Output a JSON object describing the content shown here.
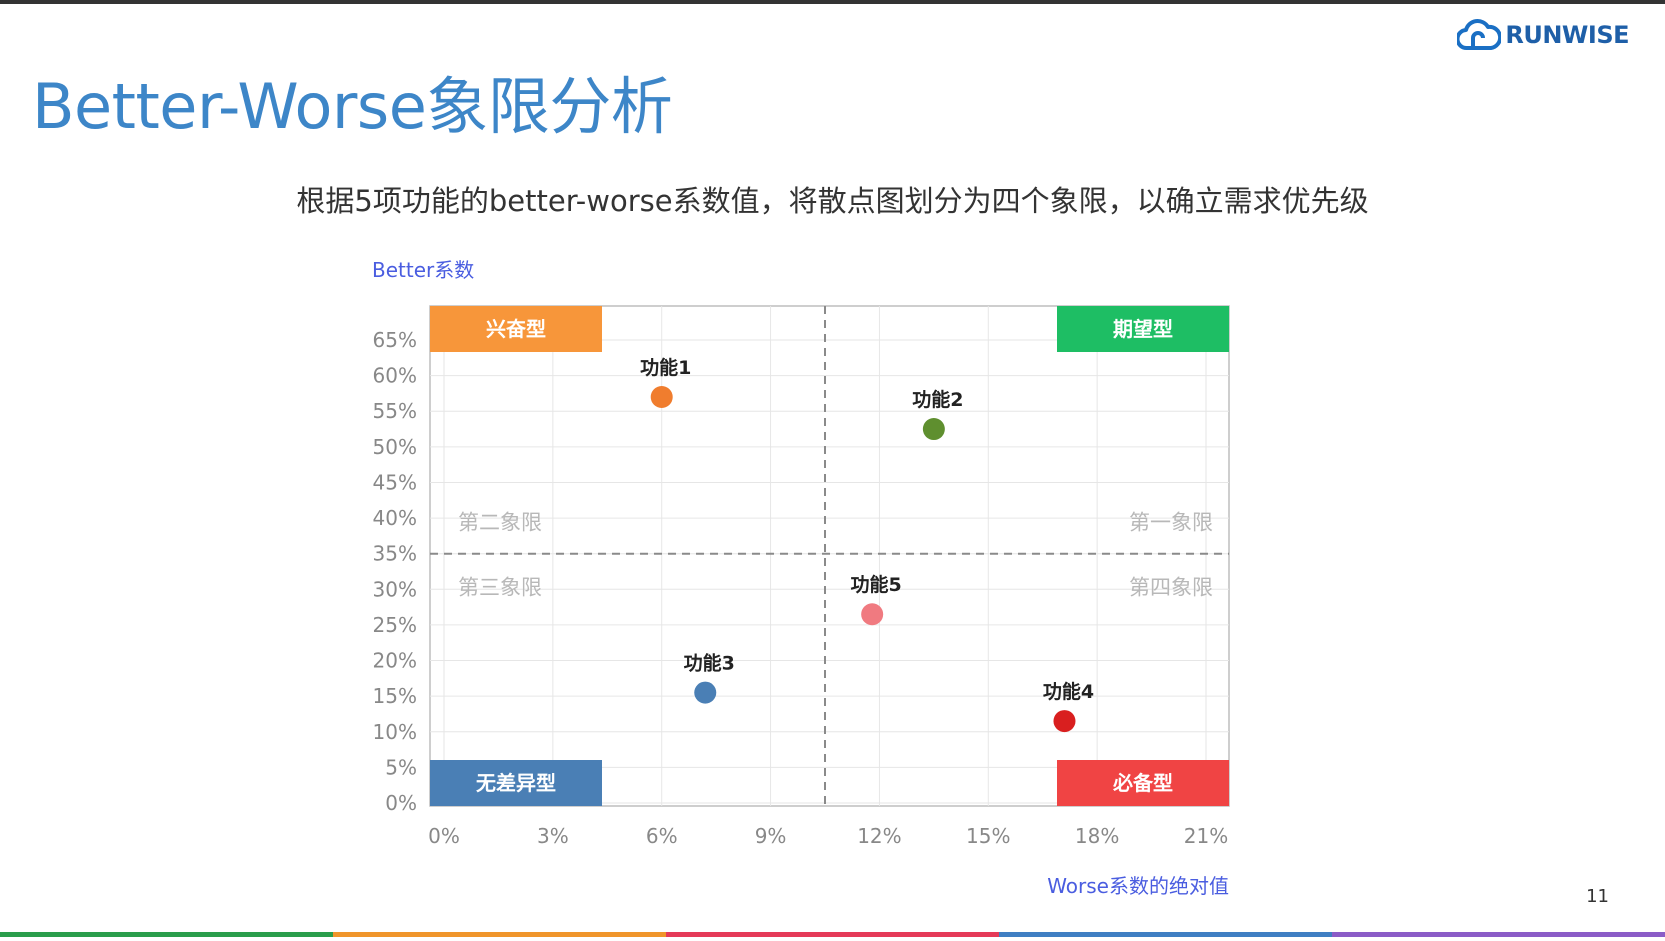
{
  "slide": {
    "title": "Better-Worse象限分析",
    "subtitle": "根据5项功能的better-worse系数值，将散点图划分为四个象限，以确立需求优先级",
    "page_number": "11"
  },
  "logo": {
    "text": "RUNWISE",
    "icon": "cloud-icon",
    "color": "#1e5fa8"
  },
  "colors": {
    "title": "#3d86c8",
    "accent_blue": "#4a5de0",
    "bottom_bar": [
      "#2a9d4b",
      "#f0952b",
      "#e53a58",
      "#3f7fc3",
      "#8b5cc7"
    ]
  },
  "chart_data": {
    "type": "scatter",
    "title": "",
    "xlabel": "Worse系数的绝对值",
    "ylabel": "Better系数",
    "xlim": [
      0,
      21
    ],
    "ylim": [
      0,
      65
    ],
    "x_ticks": [
      "0%",
      "3%",
      "6%",
      "9%",
      "12%",
      "15%",
      "18%",
      "21%"
    ],
    "x_tick_values": [
      0,
      3,
      6,
      9,
      12,
      15,
      18,
      21
    ],
    "y_ticks": [
      "0%",
      "5%",
      "10%",
      "15%",
      "20%",
      "25%",
      "30%",
      "35%",
      "40%",
      "45%",
      "50%",
      "55%",
      "60%",
      "65%"
    ],
    "y_tick_values": [
      0,
      5,
      10,
      15,
      20,
      25,
      30,
      35,
      40,
      45,
      50,
      55,
      60,
      65
    ],
    "grid": true,
    "divider_x": 10.5,
    "divider_y": 35,
    "points": [
      {
        "label": "功能1",
        "x": 6.0,
        "y": 57,
        "color": "#f07d2e"
      },
      {
        "label": "功能2",
        "x": 13.5,
        "y": 52.5,
        "color": "#5f8f2f"
      },
      {
        "label": "功能3",
        "x": 7.2,
        "y": 15.5,
        "color": "#4a7fb5"
      },
      {
        "label": "功能4",
        "x": 17.1,
        "y": 11.5,
        "color": "#d91f1f"
      },
      {
        "label": "功能5",
        "x": 11.8,
        "y": 26.5,
        "color": "#f07a80"
      }
    ],
    "corner_labels": [
      {
        "text": "兴奋型",
        "corner": "top-left",
        "color": "#f7963a"
      },
      {
        "text": "期望型",
        "corner": "top-right",
        "color": "#1ebe64"
      },
      {
        "text": "无差异型",
        "corner": "bottom-left",
        "color": "#4a7fb5"
      },
      {
        "text": "必备型",
        "corner": "bottom-right",
        "color": "#f04444"
      }
    ],
    "quadrant_labels": [
      {
        "text": "第二象限",
        "position": "upper-left"
      },
      {
        "text": "第一象限",
        "position": "upper-right"
      },
      {
        "text": "第三象限",
        "position": "lower-left"
      },
      {
        "text": "第四象限",
        "position": "lower-right"
      }
    ]
  }
}
